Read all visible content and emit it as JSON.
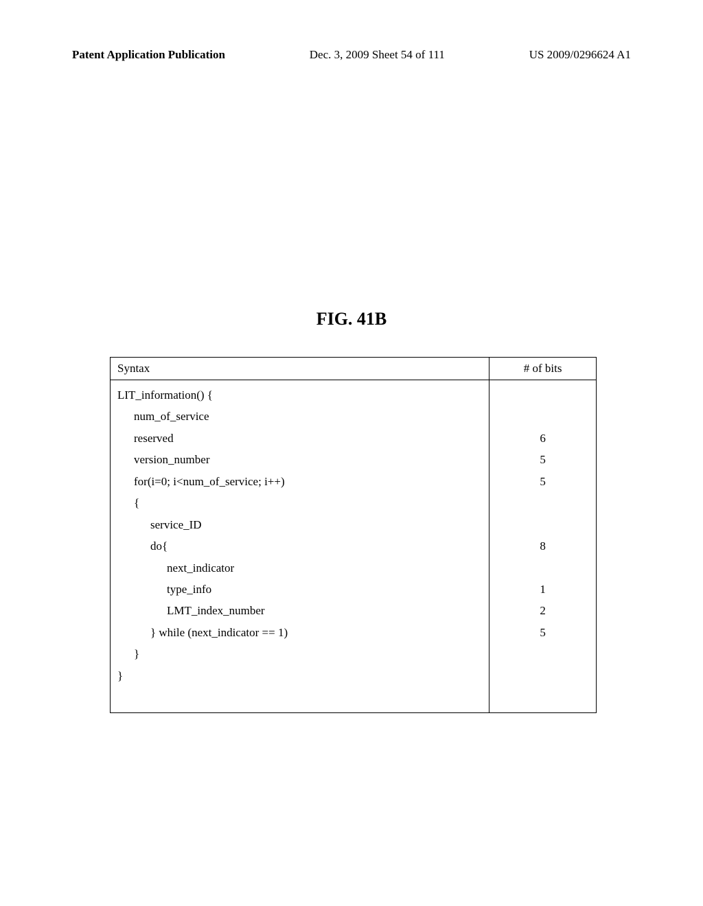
{
  "header": {
    "left": "Patent Application Publication",
    "center": "Dec. 3, 2009  Sheet 54 of 111",
    "right": "US 2009/0296624 A1"
  },
  "figure": {
    "title": "FIG.  41B"
  },
  "table": {
    "columns": [
      "Syntax",
      "# of bits"
    ],
    "syntax_lines": [
      {
        "text": "LIT_information()",
        "indent": 0
      },
      {
        "text": "{",
        "indent": 0
      },
      {
        "text": "num_of_service",
        "indent": 1
      },
      {
        "text": "reserved",
        "indent": 1
      },
      {
        "text": "version_number",
        "indent": 1
      },
      {
        "text": "for(i=0; i<num_of_service; i++)",
        "indent": 1
      },
      {
        "text": "{",
        "indent": 1
      },
      {
        "text": "service_ID",
        "indent": 2
      },
      {
        "text": "do{",
        "indent": 2
      },
      {
        "text": "next_indicator",
        "indent": 3
      },
      {
        "text": "type_info",
        "indent": 3
      },
      {
        "text": "LMT_index_number",
        "indent": 3
      },
      {
        "text": "} while (next_indicator == 1)",
        "indent": 2
      },
      {
        "text": "}",
        "indent": 1
      },
      {
        "text": "}",
        "indent": 0
      }
    ],
    "bits_lines": [
      "",
      "",
      "6",
      "5",
      "5",
      "",
      "",
      "8",
      "",
      "1",
      "2",
      "5",
      "",
      "",
      ""
    ]
  },
  "style": {
    "background": "#ffffff",
    "text_color": "#000000",
    "border_color": "#000000",
    "header_fontsize": 17,
    "figure_fontsize": 26,
    "table_fontsize": 17
  }
}
